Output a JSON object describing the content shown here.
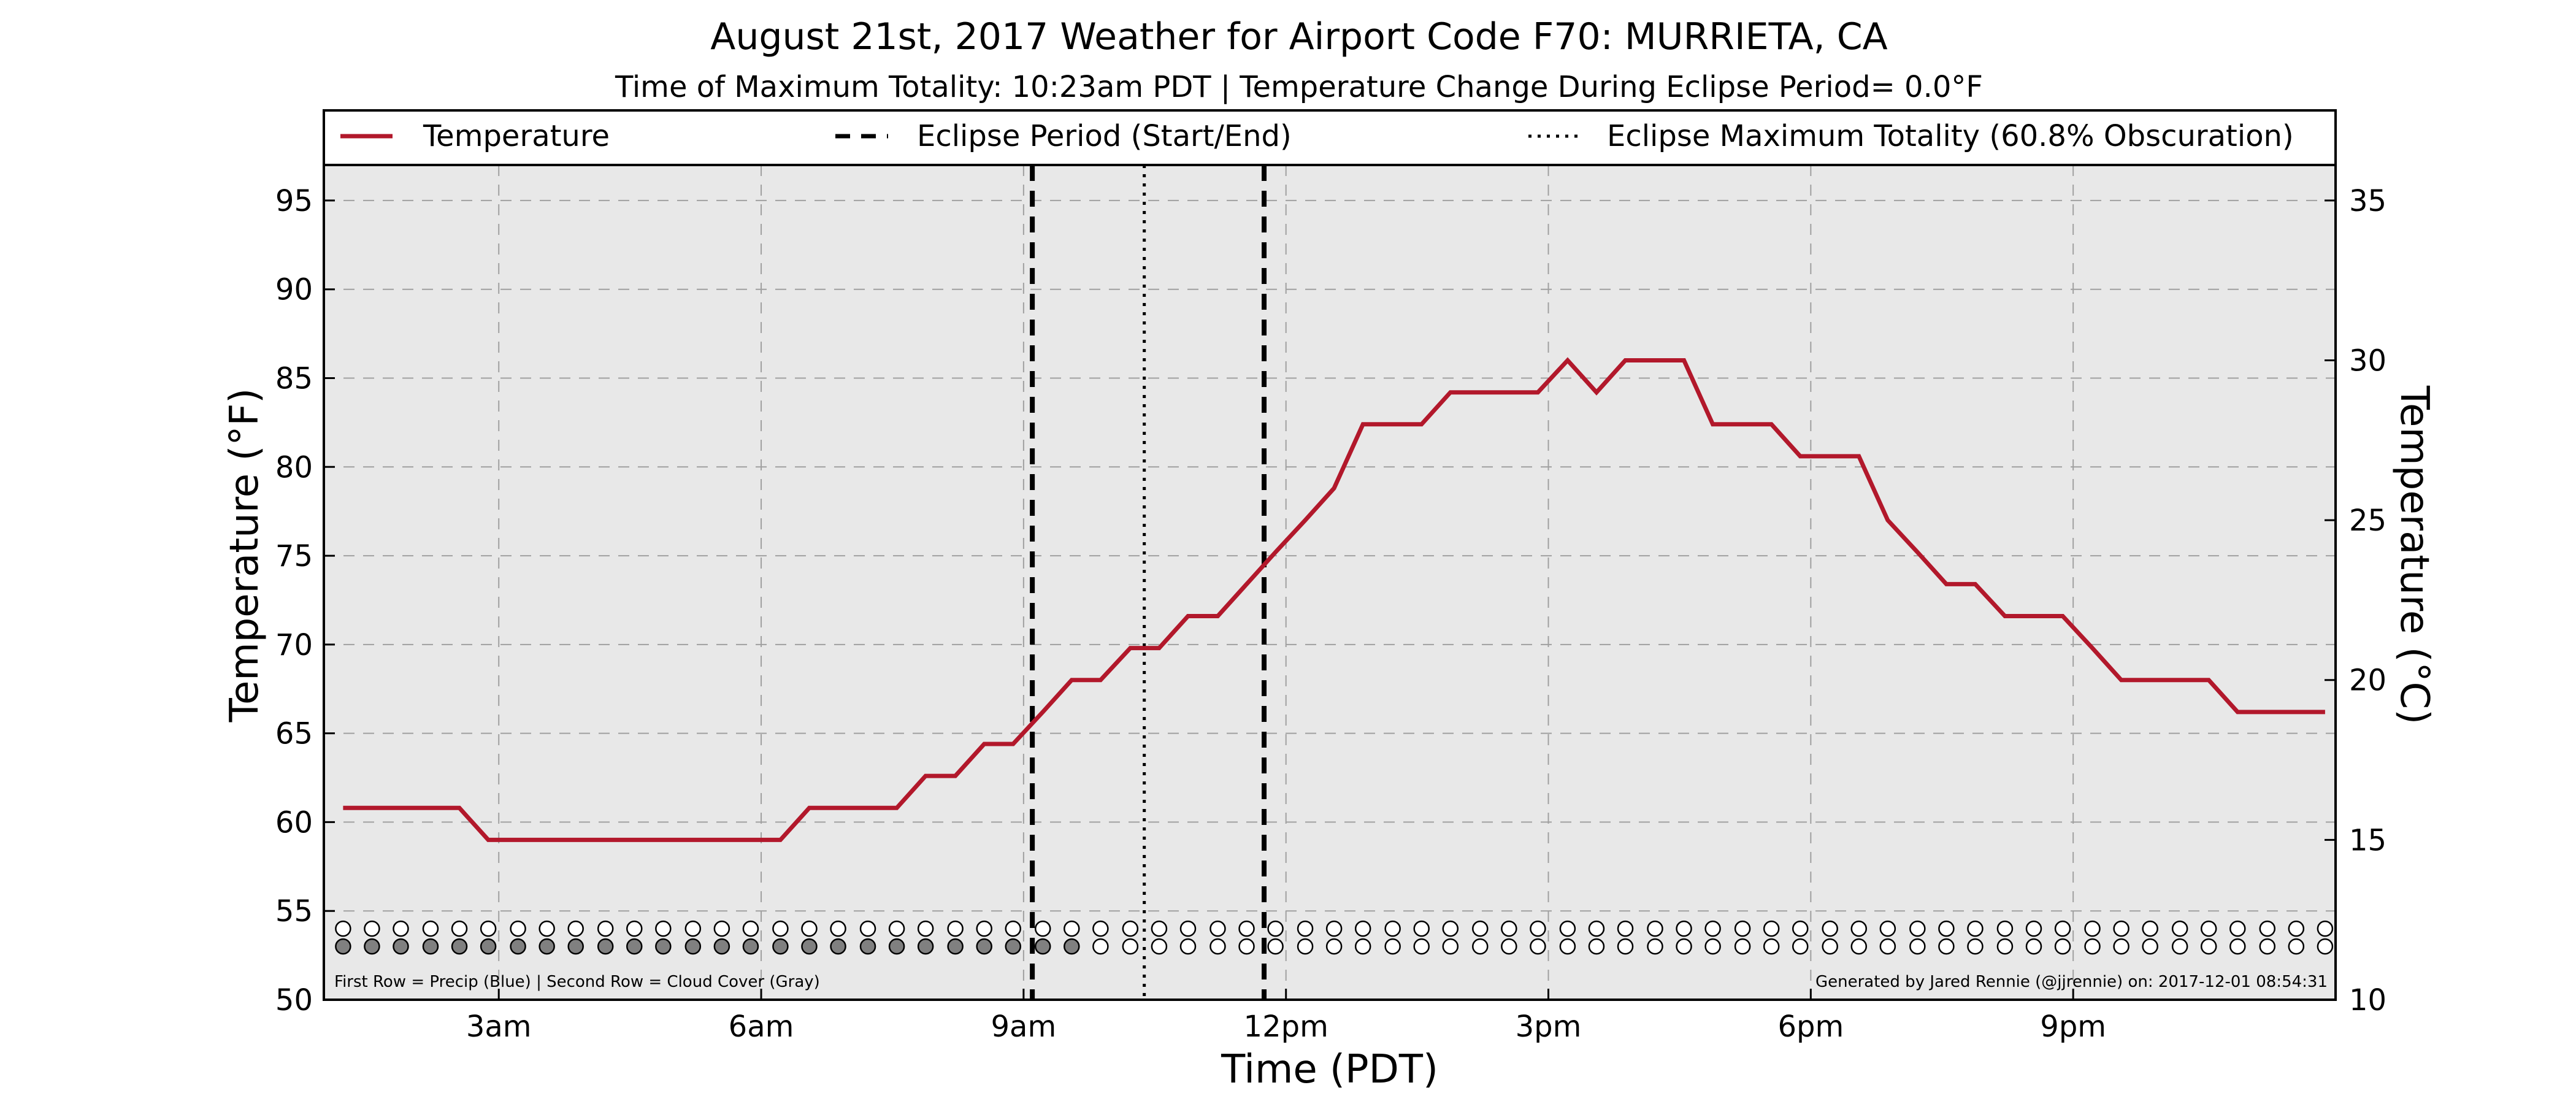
{
  "chart_data": {
    "type": "line",
    "title": "August 21st, 2017 Weather for Airport Code F70: MURRIETA, CA",
    "subtitle": "Time of Maximum Totality: 10:23am PDT | Temperature Change During Eclipse Period= 0.0°F",
    "xlabel": "Time (PDT)",
    "ylabel_left": "Temperature (°F)",
    "ylabel_right": "Temperature (°C)",
    "xlim_hours": [
      1.0,
      24.0
    ],
    "ylim_f": [
      50,
      97
    ],
    "ylim_c": [
      10,
      36.11
    ],
    "x_ticks": [
      {
        "hour": 3,
        "label": "3am"
      },
      {
        "hour": 6,
        "label": "6am"
      },
      {
        "hour": 9,
        "label": "9am"
      },
      {
        "hour": 12,
        "label": "12pm"
      },
      {
        "hour": 15,
        "label": "3pm"
      },
      {
        "hour": 18,
        "label": "6pm"
      },
      {
        "hour": 21,
        "label": "9pm"
      }
    ],
    "y_ticks_f": [
      {
        "value": 50,
        "label": "50"
      },
      {
        "value": 55,
        "label": "55"
      },
      {
        "value": 60,
        "label": "60"
      },
      {
        "value": 65,
        "label": "65"
      },
      {
        "value": 70,
        "label": "70"
      },
      {
        "value": 75,
        "label": "75"
      },
      {
        "value": 80,
        "label": "80"
      },
      {
        "value": 85,
        "label": "85"
      },
      {
        "value": 90,
        "label": "90"
      },
      {
        "value": 95,
        "label": "95"
      }
    ],
    "y_ticks_c": [
      {
        "value": 10,
        "label": "10"
      },
      {
        "value": 15,
        "label": "15"
      },
      {
        "value": 20,
        "label": "20"
      },
      {
        "value": 25,
        "label": "25"
      },
      {
        "value": 30,
        "label": "30"
      },
      {
        "value": 35,
        "label": "35"
      }
    ],
    "grid": true,
    "legend_position": "top",
    "legend": [
      {
        "label": "Temperature",
        "style": "solid"
      },
      {
        "label": "Eclipse Period (Start/End)",
        "style": "dashed"
      },
      {
        "label": "Eclipse Maximum Totality (60.8% Obscuration)",
        "style": "dotted"
      }
    ],
    "series": [
      {
        "name": "Temperature",
        "color": "#b2182b",
        "x": [
          1.22,
          1.55,
          1.88,
          2.22,
          2.55,
          2.88,
          3.0,
          3.22,
          3.55,
          3.88,
          4.22,
          4.55,
          4.88,
          5.22,
          5.55,
          5.88,
          6.22,
          6.55,
          6.88,
          7.22,
          7.55,
          7.88,
          8.22,
          8.55,
          8.88,
          9.22,
          9.55,
          9.88,
          10.22,
          10.55,
          10.88,
          11.22,
          11.55,
          11.88,
          12.22,
          12.55,
          12.88,
          13.22,
          13.55,
          13.88,
          14.22,
          14.55,
          14.88,
          15.22,
          15.55,
          15.88,
          16.22,
          16.55,
          16.88,
          17.22,
          17.55,
          17.88,
          18.22,
          18.55,
          18.88,
          19.22,
          19.55,
          19.88,
          20.22,
          20.55,
          20.88,
          21.22,
          21.55,
          21.88,
          22.22,
          22.55,
          22.88,
          23.22,
          23.55,
          23.88
        ],
        "values": [
          60.8,
          60.8,
          60.8,
          60.8,
          60.8,
          59.0,
          59.0,
          59.0,
          59.0,
          59.0,
          59.0,
          59.0,
          59.0,
          59.0,
          59.0,
          59.0,
          59.0,
          60.8,
          60.8,
          60.8,
          60.8,
          62.6,
          62.6,
          64.4,
          64.4,
          66.2,
          68.0,
          68.0,
          69.8,
          69.8,
          71.6,
          71.6,
          73.4,
          75.2,
          77.0,
          78.8,
          82.4,
          82.4,
          82.4,
          84.2,
          84.2,
          84.2,
          84.2,
          86.0,
          84.2,
          86.0,
          86.0,
          86.0,
          82.4,
          82.4,
          82.4,
          80.6,
          80.6,
          80.6,
          77.0,
          75.2,
          73.4,
          73.4,
          71.6,
          71.6,
          71.6,
          69.8,
          68.0,
          68.0,
          68.0,
          68.0,
          66.2,
          66.2,
          66.2,
          66.2
        ]
      }
    ],
    "eclipse_start_hour": 9.1,
    "eclipse_end_hour": 11.75,
    "eclipse_max_hour": 10.38,
    "marker_rows": {
      "x": [
        1.22,
        1.55,
        1.88,
        2.22,
        2.55,
        2.88,
        3.22,
        3.55,
        3.88,
        4.22,
        4.55,
        4.88,
        5.22,
        5.55,
        5.88,
        6.22,
        6.55,
        6.88,
        7.22,
        7.55,
        7.88,
        8.22,
        8.55,
        8.88,
        9.22,
        9.55,
        9.88,
        10.22,
        10.55,
        10.88,
        11.22,
        11.55,
        11.88,
        12.22,
        12.55,
        12.88,
        13.22,
        13.55,
        13.88,
        14.22,
        14.55,
        14.88,
        15.22,
        15.55,
        15.88,
        16.22,
        16.55,
        16.88,
        17.22,
        17.55,
        17.88,
        18.22,
        18.55,
        18.88,
        19.22,
        19.55,
        19.88,
        20.22,
        20.55,
        20.88,
        21.22,
        21.55,
        21.88,
        22.22,
        22.55,
        22.88,
        23.22,
        23.55,
        23.88
      ],
      "precip_row_value_f": 54,
      "cloud_row_value_f": 53,
      "precip_filled": [
        false,
        false,
        false,
        false,
        false,
        false,
        false,
        false,
        false,
        false,
        false,
        false,
        false,
        false,
        false,
        false,
        false,
        false,
        false,
        false,
        false,
        false,
        false,
        false,
        false,
        false,
        false,
        false,
        false,
        false,
        false,
        false,
        false,
        false,
        false,
        false,
        false,
        false,
        false,
        false,
        false,
        false,
        false,
        false,
        false,
        false,
        false,
        false,
        false,
        false,
        false,
        false,
        false,
        false,
        false,
        false,
        false,
        false,
        false,
        false,
        false,
        false,
        false,
        false,
        false,
        false,
        false,
        false,
        false
      ],
      "cloud_filled": [
        true,
        true,
        true,
        true,
        true,
        true,
        true,
        true,
        true,
        true,
        true,
        true,
        true,
        true,
        true,
        true,
        true,
        true,
        true,
        true,
        true,
        true,
        true,
        true,
        true,
        true,
        false,
        false,
        false,
        false,
        false,
        false,
        false,
        false,
        false,
        false,
        false,
        false,
        false,
        false,
        false,
        false,
        false,
        false,
        false,
        false,
        false,
        false,
        false,
        false,
        false,
        false,
        false,
        false,
        false,
        false,
        false,
        false,
        false,
        false,
        false,
        false,
        false,
        false,
        false,
        false,
        false,
        false,
        false
      ],
      "precip_color": "#4a7fd4",
      "cloud_color": "#808080"
    },
    "note_left": "First Row = Precip (Blue) | Second Row = Cloud Cover (Gray)",
    "note_right": "Generated by Jared Rennie (@jjrennie) on: 2017-12-01 08:54:31"
  }
}
